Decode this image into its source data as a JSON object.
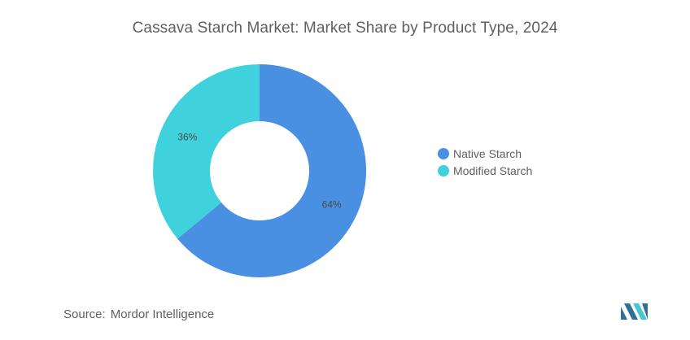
{
  "colors": {
    "native": "#4a90e2",
    "modified": "#40d2dc",
    "logo": "#2f6f99",
    "logo_accent": "#45c7d1"
  },
  "chart_data": {
    "type": "pie",
    "title": "Cassava Starch Market: Market Share by Product Type, 2024",
    "donut": true,
    "start_angle_deg": 0,
    "direction": "clockwise",
    "legend_position": "right",
    "series": [
      {
        "name": "Native Starch",
        "value": 64,
        "label": "64%",
        "color": "#4a90e2"
      },
      {
        "name": "Modified Starch",
        "value": 36,
        "label": "36%",
        "color": "#40d2dc"
      }
    ],
    "legend": [
      "Native Starch",
      "Modified Starch"
    ]
  },
  "source": {
    "prefix": "Source:",
    "name": "Mordor Intelligence"
  },
  "logo": {
    "icon": "mordor-intelligence-logo"
  }
}
